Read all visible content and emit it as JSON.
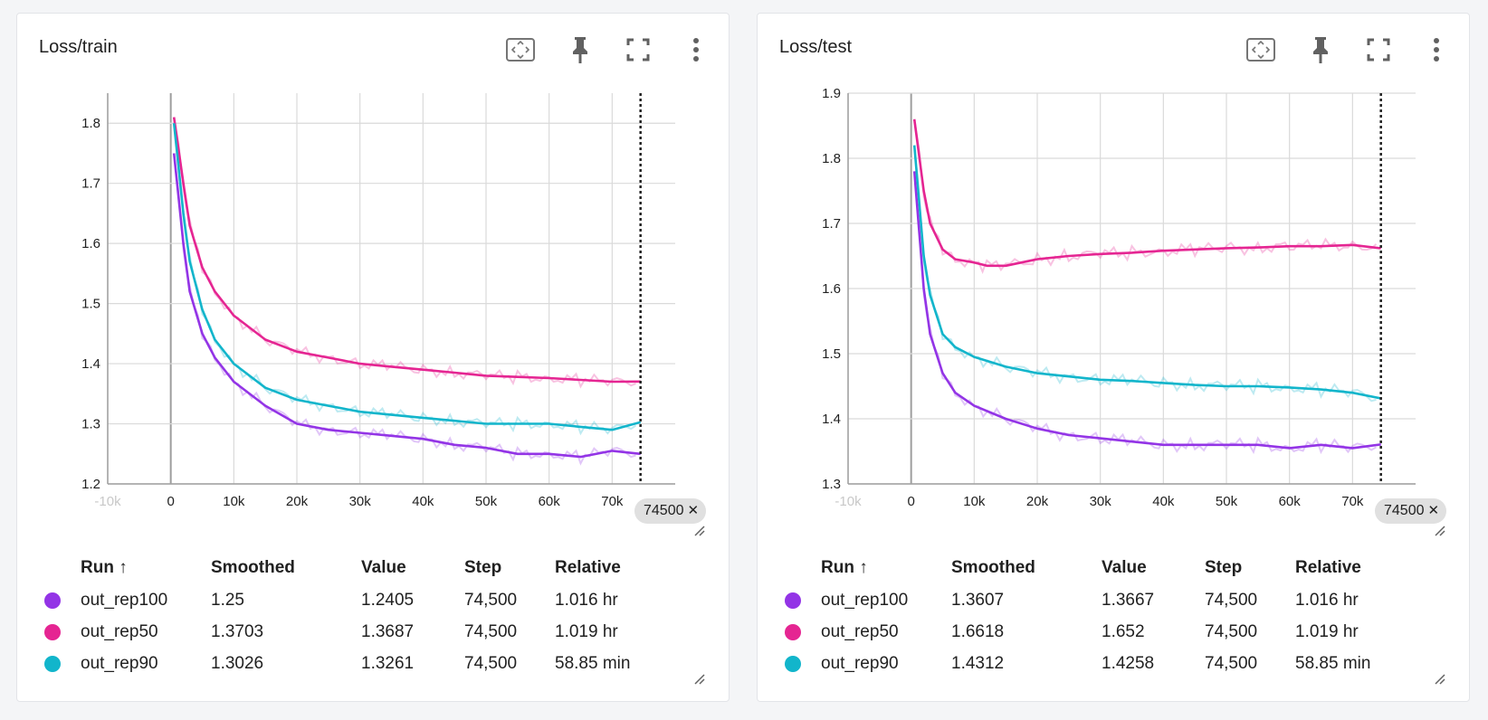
{
  "cards": [
    {
      "title": "Loss/train",
      "x_badge": "74500",
      "table": {
        "headers": {
          "run": "Run ↑",
          "smoothed": "Smoothed",
          "value": "Value",
          "step": "Step",
          "relative": "Relative"
        },
        "rows": [
          {
            "run": "out_rep100",
            "smoothed": "1.25",
            "value": "1.2405",
            "step": "74,500",
            "relative": "1.016 hr",
            "color": "#9334e6"
          },
          {
            "run": "out_rep50",
            "smoothed": "1.3703",
            "value": "1.3687",
            "step": "74,500",
            "relative": "1.019 hr",
            "color": "#e52592"
          },
          {
            "run": "out_rep90",
            "smoothed": "1.3026",
            "value": "1.3261",
            "step": "74,500",
            "relative": "58.85 min",
            "color": "#12b5cb"
          }
        ]
      }
    },
    {
      "title": "Loss/test",
      "x_badge": "74500",
      "table": {
        "headers": {
          "run": "Run ↑",
          "smoothed": "Smoothed",
          "value": "Value",
          "step": "Step",
          "relative": "Relative"
        },
        "rows": [
          {
            "run": "out_rep100",
            "smoothed": "1.3607",
            "value": "1.3667",
            "step": "74,500",
            "relative": "1.016 hr",
            "color": "#9334e6"
          },
          {
            "run": "out_rep50",
            "smoothed": "1.6618",
            "value": "1.652",
            "step": "74,500",
            "relative": "1.019 hr",
            "color": "#e52592"
          },
          {
            "run": "out_rep90",
            "smoothed": "1.4312",
            "value": "1.4258",
            "step": "74,500",
            "relative": "58.85 min",
            "color": "#12b5cb"
          }
        ]
      }
    }
  ],
  "chart_data": [
    {
      "type": "line",
      "title": "Loss/train",
      "xlim": [
        -10000,
        80000
      ],
      "ylim": [
        1.2,
        1.85
      ],
      "x_ticks": [
        -10000,
        0,
        10000,
        20000,
        30000,
        40000,
        50000,
        60000,
        70000
      ],
      "x_tick_labels": [
        "-10k",
        "0",
        "10k",
        "20k",
        "30k",
        "40k",
        "50k",
        "60k",
        "70k"
      ],
      "y_ticks": [
        1.2,
        1.3,
        1.4,
        1.5,
        1.6,
        1.7,
        1.8
      ],
      "y_tick_labels": [
        "1.2",
        "1.3",
        "1.4",
        "1.5",
        "1.6",
        "1.7",
        "1.8"
      ],
      "cursor_step": 74500,
      "series": [
        {
          "name": "out_rep100",
          "color": "#9334e6",
          "x": [
            500,
            2000,
            3000,
            5000,
            7000,
            10000,
            15000,
            20000,
            25000,
            30000,
            35000,
            40000,
            45000,
            50000,
            55000,
            60000,
            65000,
            70000,
            74500
          ],
          "values": [
            1.75,
            1.6,
            1.52,
            1.45,
            1.41,
            1.37,
            1.33,
            1.3,
            1.29,
            1.285,
            1.28,
            1.275,
            1.265,
            1.26,
            1.25,
            1.25,
            1.245,
            1.255,
            1.25
          ]
        },
        {
          "name": "out_rep50",
          "color": "#e52592",
          "x": [
            500,
            2000,
            3000,
            5000,
            7000,
            10000,
            15000,
            20000,
            25000,
            30000,
            35000,
            40000,
            45000,
            50000,
            55000,
            60000,
            65000,
            70000,
            74500
          ],
          "values": [
            1.81,
            1.7,
            1.63,
            1.56,
            1.52,
            1.48,
            1.44,
            1.42,
            1.41,
            1.4,
            1.395,
            1.39,
            1.385,
            1.38,
            1.378,
            1.376,
            1.373,
            1.37,
            1.3703
          ]
        },
        {
          "name": "out_rep90",
          "color": "#12b5cb",
          "x": [
            500,
            2000,
            3000,
            5000,
            7000,
            10000,
            15000,
            20000,
            25000,
            30000,
            35000,
            40000,
            45000,
            50000,
            55000,
            60000,
            65000,
            70000,
            74500
          ],
          "values": [
            1.8,
            1.65,
            1.57,
            1.49,
            1.44,
            1.4,
            1.36,
            1.34,
            1.33,
            1.32,
            1.315,
            1.31,
            1.305,
            1.3,
            1.3,
            1.3,
            1.295,
            1.29,
            1.3026
          ]
        }
      ]
    },
    {
      "type": "line",
      "title": "Loss/test",
      "xlim": [
        -10000,
        80000
      ],
      "ylim": [
        1.3,
        1.9
      ],
      "x_ticks": [
        -10000,
        0,
        10000,
        20000,
        30000,
        40000,
        50000,
        60000,
        70000
      ],
      "x_tick_labels": [
        "-10k",
        "0",
        "10k",
        "20k",
        "30k",
        "40k",
        "50k",
        "60k",
        "70k"
      ],
      "y_ticks": [
        1.3,
        1.4,
        1.5,
        1.6,
        1.7,
        1.8,
        1.9
      ],
      "y_tick_labels": [
        "1.3",
        "1.4",
        "1.5",
        "1.6",
        "1.7",
        "1.8",
        "1.9"
      ],
      "cursor_step": 74500,
      "series": [
        {
          "name": "out_rep100",
          "color": "#9334e6",
          "x": [
            500,
            2000,
            3000,
            5000,
            7000,
            10000,
            15000,
            20000,
            25000,
            30000,
            35000,
            40000,
            45000,
            50000,
            55000,
            60000,
            65000,
            70000,
            74500
          ],
          "values": [
            1.78,
            1.6,
            1.53,
            1.47,
            1.44,
            1.42,
            1.4,
            1.385,
            1.375,
            1.37,
            1.365,
            1.36,
            1.36,
            1.36,
            1.36,
            1.355,
            1.36,
            1.355,
            1.3607
          ]
        },
        {
          "name": "out_rep50",
          "color": "#e52592",
          "x": [
            500,
            2000,
            3000,
            5000,
            7000,
            10000,
            12000,
            15000,
            20000,
            25000,
            30000,
            35000,
            40000,
            45000,
            50000,
            55000,
            60000,
            65000,
            70000,
            74500
          ],
          "values": [
            1.86,
            1.75,
            1.7,
            1.66,
            1.645,
            1.64,
            1.635,
            1.635,
            1.645,
            1.65,
            1.653,
            1.655,
            1.658,
            1.66,
            1.662,
            1.663,
            1.665,
            1.665,
            1.667,
            1.6618
          ]
        },
        {
          "name": "out_rep90",
          "color": "#12b5cb",
          "x": [
            500,
            2000,
            3000,
            5000,
            7000,
            10000,
            15000,
            20000,
            25000,
            30000,
            35000,
            40000,
            45000,
            50000,
            55000,
            60000,
            65000,
            70000,
            74500
          ],
          "values": [
            1.82,
            1.65,
            1.59,
            1.53,
            1.51,
            1.495,
            1.48,
            1.47,
            1.465,
            1.46,
            1.458,
            1.455,
            1.452,
            1.45,
            1.45,
            1.448,
            1.445,
            1.44,
            1.4312
          ]
        }
      ]
    }
  ]
}
